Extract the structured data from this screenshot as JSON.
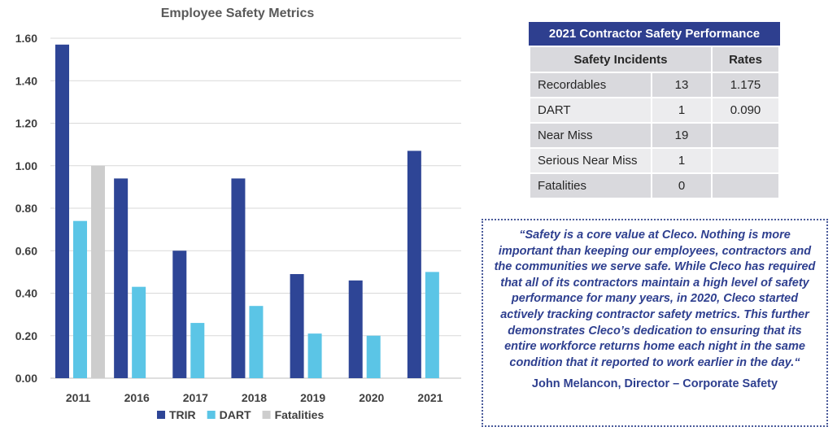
{
  "chart_data": {
    "type": "bar",
    "title": "Employee Safety Metrics",
    "categories": [
      "2011",
      "2016",
      "2017",
      "2018",
      "2019",
      "2020",
      "2021"
    ],
    "series": [
      {
        "name": "TRIR",
        "color": "#2e4596",
        "values": [
          1.57,
          0.94,
          0.6,
          0.94,
          0.49,
          0.46,
          1.07
        ]
      },
      {
        "name": "DART",
        "color": "#5bc5e6",
        "values": [
          0.74,
          0.43,
          0.26,
          0.34,
          0.21,
          0.2,
          0.5
        ]
      },
      {
        "name": "Fatalities",
        "color": "#cdcdcd",
        "values": [
          1.0,
          null,
          null,
          null,
          null,
          null,
          null
        ]
      }
    ],
    "ylim": [
      0,
      1.6
    ],
    "yticks": [
      "0.00",
      "0.20",
      "0.40",
      "0.60",
      "0.80",
      "1.00",
      "1.20",
      "1.40",
      "1.60"
    ],
    "grid": true,
    "legend_position": "bottom",
    "xlabel": "",
    "ylabel": ""
  },
  "contractor_table": {
    "title": "2021 Contractor Safety Performance",
    "headers": [
      "Safety Incidents",
      "Rates"
    ],
    "rows": [
      {
        "label": "Recordables",
        "count": "13",
        "rate": "1.175"
      },
      {
        "label": "DART",
        "count": "1",
        "rate": "0.090"
      },
      {
        "label": "Near Miss",
        "count": "19",
        "rate": ""
      },
      {
        "label": "Serious Near Miss",
        "count": "1",
        "rate": ""
      },
      {
        "label": "Fatalities",
        "count": "0",
        "rate": ""
      }
    ]
  },
  "quote": {
    "text": "“Safety is a core value at Cleco. Nothing is more important than keeping our employees, contractors and the communities we serve safe. While Cleco has required that all of its contractors maintain a high level of safety performance for many years, in 2020, Cleco started actively tracking contractor safety metrics.  This further demonstrates Cleco’s dedication to ensuring that its entire workforce returns home each night in the same condition that it reported to work earlier in the day.“",
    "attribution": "John Melancon, Director – Corporate Safety"
  }
}
